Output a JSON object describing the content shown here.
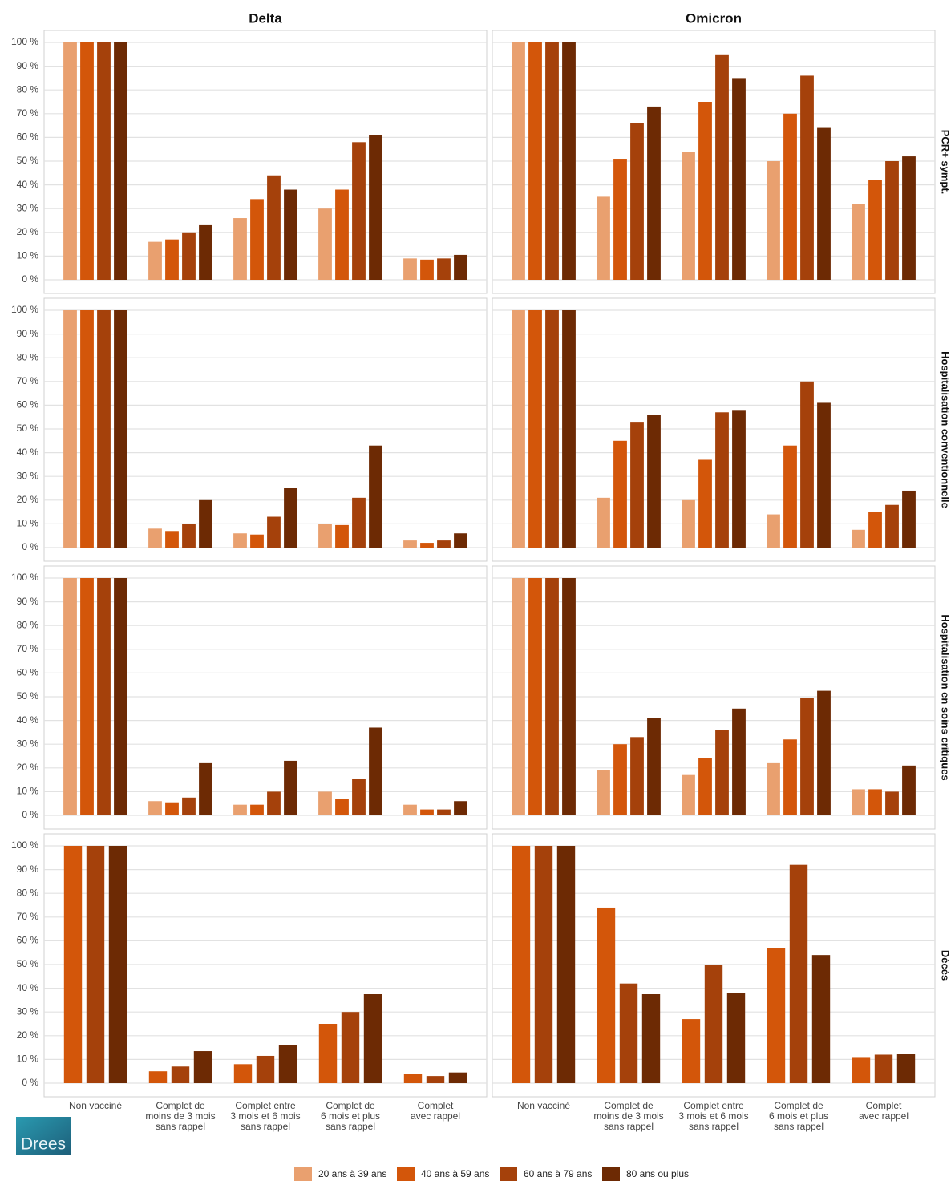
{
  "chart_data": {
    "type": "bar",
    "columns": [
      "Delta",
      "Omicron"
    ],
    "rows": [
      "PCR+ sympt.",
      "Hospitalisation conventionnelle",
      "Hospitalisation en soins critiques",
      "Décès"
    ],
    "categories": [
      [
        "Non vacciné"
      ],
      [
        "Complet de",
        "moins de 3 mois",
        "sans rappel"
      ],
      [
        "Complet entre",
        "3 mois et 6 mois",
        "sans rappel"
      ],
      [
        "Complet de",
        "6 mois et plus",
        "sans rappel"
      ],
      [
        "Complet",
        "avec rappel"
      ]
    ],
    "ylim": [
      0,
      100
    ],
    "yticks": [
      {
        "value": 0,
        "label": "0 %"
      },
      {
        "value": 10,
        "label": "10 %"
      },
      {
        "value": 20,
        "label": "20 %"
      },
      {
        "value": 30,
        "label": "30 %"
      },
      {
        "value": 40,
        "label": "40 %"
      },
      {
        "value": 50,
        "label": "50 %"
      },
      {
        "value": 60,
        "label": "60 %"
      },
      {
        "value": 70,
        "label": "70 %"
      },
      {
        "value": 80,
        "label": "80 %"
      },
      {
        "value": 90,
        "label": "90 %"
      },
      {
        "value": 100,
        "label": "100 %"
      }
    ],
    "grid": true,
    "series": [
      {
        "name": "20 ans à 39 ans",
        "color": "#e9a06f"
      },
      {
        "name": "40 ans à 59 ans",
        "color": "#d3560a"
      },
      {
        "name": "60 ans à 79 ans",
        "color": "#a5410b"
      },
      {
        "name": "80 ans ou plus",
        "color": "#6d2a04"
      }
    ],
    "facets": [
      [
        [
          [
            100,
            16,
            26,
            30,
            9
          ],
          [
            100,
            17,
            34,
            38,
            8.5
          ],
          [
            100,
            20,
            44,
            58,
            9
          ],
          [
            100,
            23,
            38,
            61,
            10.5
          ]
        ],
        [
          [
            100,
            35,
            54,
            50,
            32
          ],
          [
            100,
            51,
            75,
            70,
            42
          ],
          [
            100,
            66,
            95,
            86,
            50
          ],
          [
            100,
            73,
            85,
            64,
            52
          ]
        ]
      ],
      [
        [
          [
            100,
            8,
            6,
            10,
            3
          ],
          [
            100,
            7,
            5.5,
            9.5,
            2
          ],
          [
            100,
            10,
            13,
            21,
            3
          ],
          [
            100,
            20,
            25,
            43,
            6
          ]
        ],
        [
          [
            100,
            21,
            20,
            14,
            7.5
          ],
          [
            100,
            45,
            37,
            43,
            15
          ],
          [
            100,
            53,
            57,
            70,
            18
          ],
          [
            100,
            56,
            58,
            61,
            24
          ]
        ]
      ],
      [
        [
          [
            100,
            6,
            4.5,
            10,
            4.5
          ],
          [
            100,
            5.5,
            4.5,
            7,
            2.5
          ],
          [
            100,
            7.5,
            10,
            15.5,
            2.5
          ],
          [
            100,
            22,
            23,
            37,
            6
          ]
        ],
        [
          [
            100,
            19,
            17,
            22,
            11
          ],
          [
            100,
            30,
            24,
            32,
            11
          ],
          [
            100,
            33,
            36,
            49.5,
            10
          ],
          [
            100,
            41,
            45,
            52.5,
            21
          ]
        ]
      ],
      [
        [
          [
            null,
            null,
            null,
            null,
            null
          ],
          [
            100,
            5,
            8,
            25,
            4
          ],
          [
            100,
            7,
            11.5,
            30,
            3
          ],
          [
            100,
            13.5,
            16,
            37.5,
            4.5
          ]
        ],
        [
          [
            null,
            null,
            null,
            null,
            null
          ],
          [
            100,
            74,
            27,
            57,
            11
          ],
          [
            100,
            42,
            50,
            92,
            12
          ],
          [
            100,
            37.5,
            38,
            54,
            12.5
          ]
        ]
      ]
    ]
  },
  "logo": "Drees"
}
